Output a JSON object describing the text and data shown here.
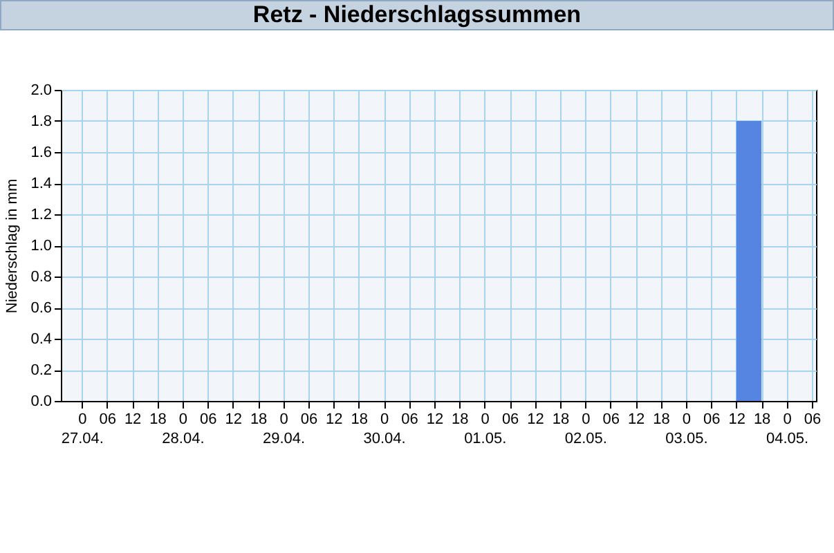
{
  "chart_data": {
    "type": "histogram",
    "title": "Retz - Niederschlagssummen",
    "ylabel": "Niederschlag in mm",
    "bins": [
      "--05-03T12:00",
      "--05-03T18:00"
    ],
    "values": [
      1.8
    ],
    "color": "#5585e0",
    "xlim": [
      "--04-26T19:00",
      "--05-04T07:00"
    ],
    "xticks": [
      {
        "value": "--04-27T00:00",
        "label": "0\n27.04."
      },
      {
        "value": "--04-27T06:00",
        "label": "06"
      },
      {
        "value": "--04-27T12:00",
        "label": "12"
      },
      {
        "value": "--04-27T18:00",
        "label": "18"
      },
      {
        "value": "--04-28T00:00",
        "label": "0\n28.04."
      },
      {
        "value": "--04-28T06:00",
        "label": "06"
      },
      {
        "value": "--04-28T12:00",
        "label": "12"
      },
      {
        "value": "--04-28T18:00",
        "label": "18"
      },
      {
        "value": "--04-29T00:00",
        "label": "0\n29.04."
      },
      {
        "value": "--04-29T06:00",
        "label": "06"
      },
      {
        "value": "--04-29T12:00",
        "label": "12"
      },
      {
        "value": "--04-29T18:00",
        "label": "18"
      },
      {
        "value": "--04-30T00:00",
        "label": "0\n30.04."
      },
      {
        "value": "--04-30T06:00",
        "label": "06"
      },
      {
        "value": "--04-30T12:00",
        "label": "12"
      },
      {
        "value": "--04-30T18:00",
        "label": "18"
      },
      {
        "value": "--05-01T00:00",
        "label": "0\n01.05."
      },
      {
        "value": "--05-01T06:00",
        "label": "06"
      },
      {
        "value": "--05-01T12:00",
        "label": "12"
      },
      {
        "value": "--05-01T18:00",
        "label": "18"
      },
      {
        "value": "--05-02T00:00",
        "label": "0\n02.05."
      },
      {
        "value": "--05-02T06:00",
        "label": "06"
      },
      {
        "value": "--05-02T12:00",
        "label": "12"
      },
      {
        "value": "--05-02T18:00",
        "label": "18"
      },
      {
        "value": "--05-03T00:00",
        "label": "0\n03.05."
      },
      {
        "value": "--05-03T06:00",
        "label": "06"
      },
      {
        "value": "--05-03T12:00",
        "label": "12"
      },
      {
        "value": "--05-03T18:00",
        "label": "18"
      },
      {
        "value": "--05-04T00:00",
        "label": "0\n04.05."
      },
      {
        "value": "--05-04T06:00",
        "label": "06"
      }
    ],
    "ylim": [
      0,
      2
    ],
    "yticks": [
      {
        "value": 0,
        "label": "0.0"
      },
      {
        "value": 0.2,
        "label": "0.2"
      },
      {
        "value": 0.4,
        "label": "0.4"
      },
      {
        "value": 0.6,
        "label": "0.6"
      },
      {
        "value": 0.8,
        "label": "0.8"
      },
      {
        "value": 1,
        "label": "1.0"
      },
      {
        "value": 1.2,
        "label": "1.2"
      },
      {
        "value": 1.4,
        "label": "1.4"
      },
      {
        "value": 1.6,
        "label": "1.6"
      },
      {
        "value": 1.8,
        "label": "1.8"
      },
      {
        "value": 2,
        "label": "2.0"
      }
    ],
    "grid": true
  }
}
